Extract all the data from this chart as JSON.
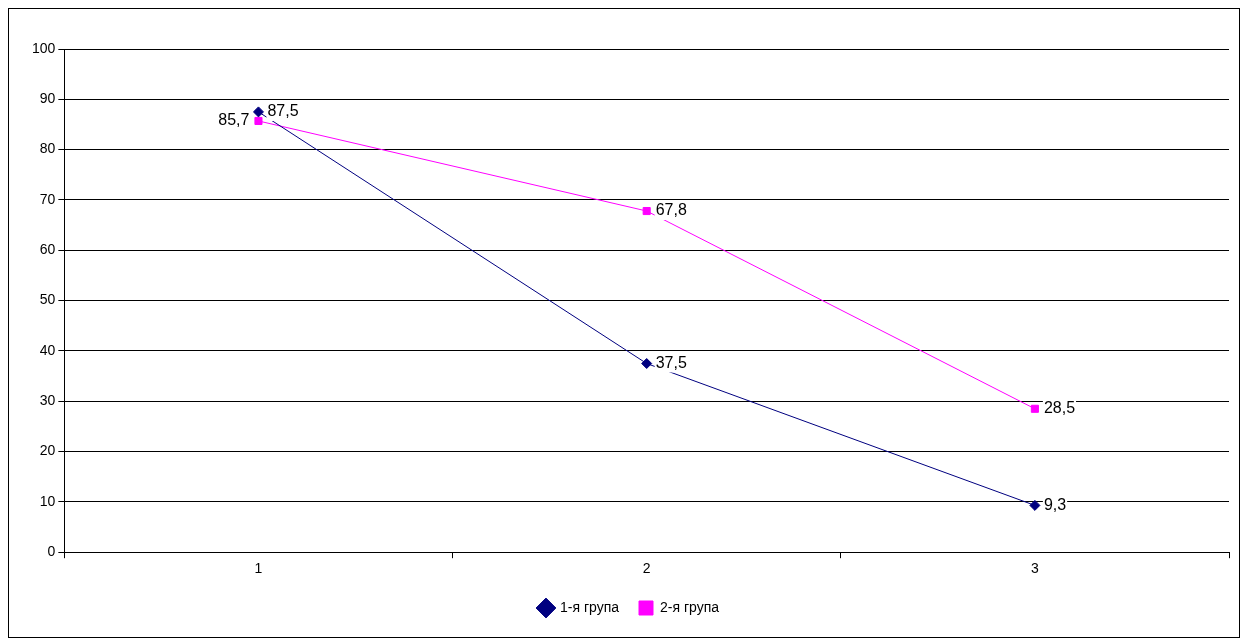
{
  "chart_data": {
    "type": "line",
    "categories": [
      "1",
      "2",
      "3"
    ],
    "series": [
      {
        "name": "1-я група",
        "color": "#000080",
        "marker": "diamond",
        "values": [
          87.5,
          37.5,
          9.3
        ],
        "value_labels": [
          "87,5",
          "37,5",
          "9,3"
        ]
      },
      {
        "name": "2-я група",
        "color": "#ff00ff",
        "marker": "square",
        "values": [
          85.7,
          67.8,
          28.5
        ],
        "value_labels": [
          "85,7",
          "67,8",
          "28,5"
        ]
      }
    ],
    "ylim": [
      0,
      100
    ],
    "yticks": [
      0,
      10,
      20,
      30,
      40,
      50,
      60,
      70,
      80,
      90,
      100
    ],
    "grid": "y",
    "legend": "bottom"
  }
}
